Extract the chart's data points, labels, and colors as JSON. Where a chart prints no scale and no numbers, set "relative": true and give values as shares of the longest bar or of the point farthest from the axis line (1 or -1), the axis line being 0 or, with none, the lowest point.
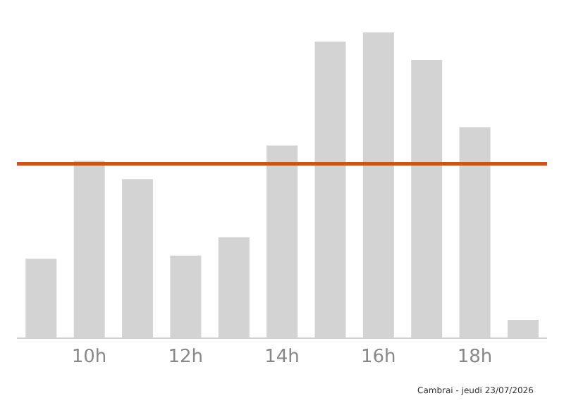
{
  "chart_data": {
    "type": "bar",
    "relative": true,
    "categories": [
      null,
      "10h",
      null,
      "12h",
      null,
      "14h",
      null,
      "16h",
      null,
      "18h",
      null
    ],
    "values": [
      0.26,
      0.58,
      0.52,
      0.27,
      0.33,
      0.63,
      0.97,
      1,
      0.91,
      0.69,
      0.06
    ],
    "color": "#d3d3d3",
    "ref_lines": [
      {
        "axis": "y",
        "value": 0.57,
        "color": "#c8551c"
      }
    ],
    "annotations": [
      "Cambrai - jeudi 23/07/2026"
    ],
    "grid": false,
    "legend": false
  }
}
